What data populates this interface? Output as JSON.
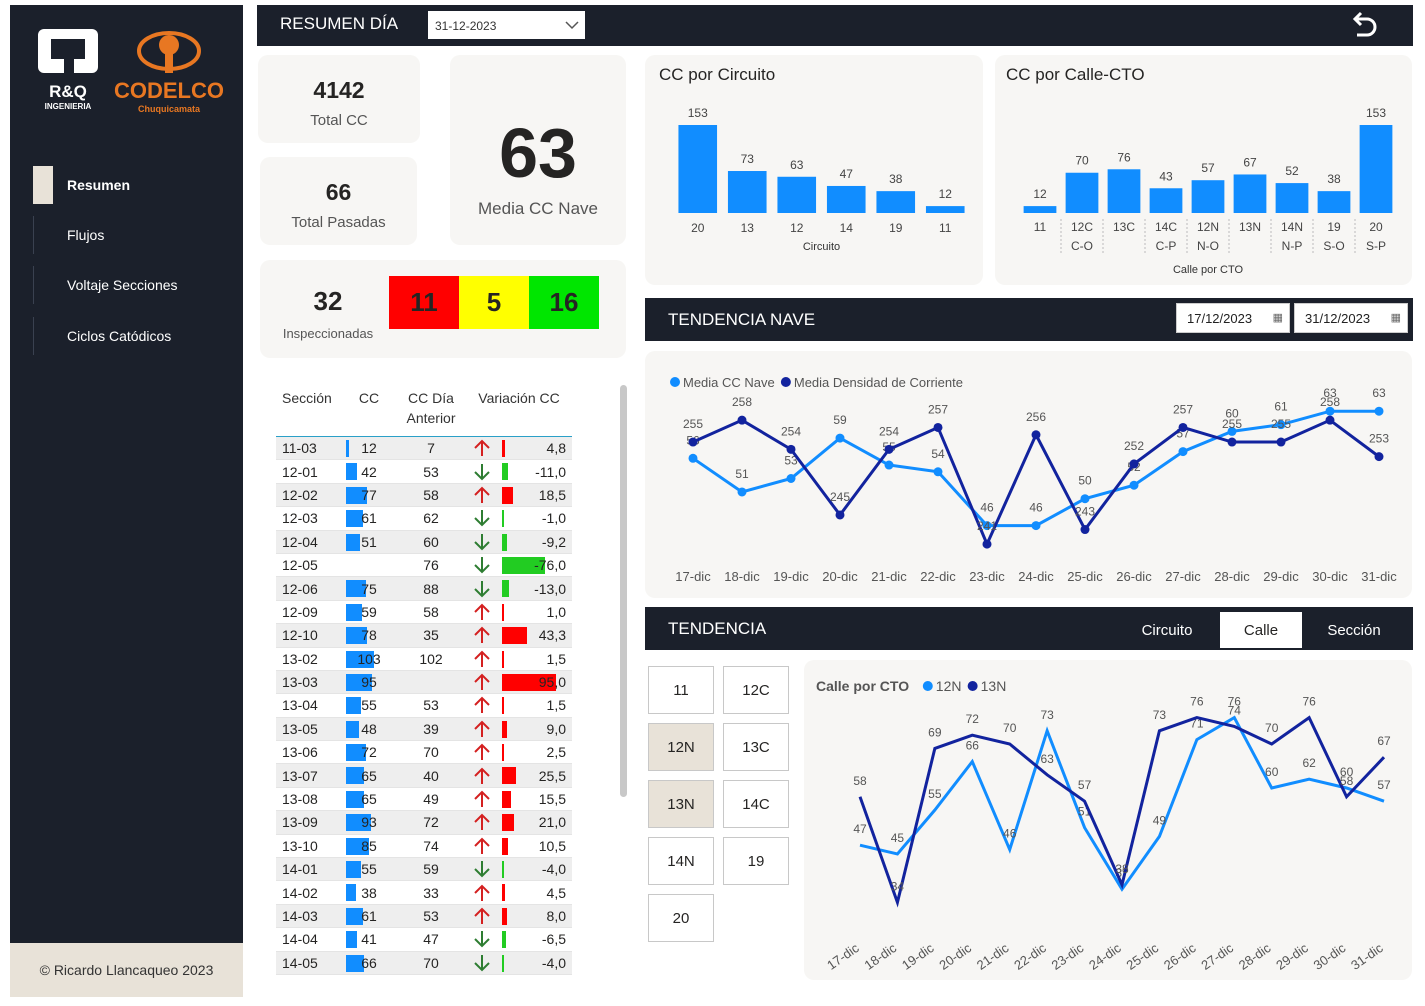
{
  "sidebar": {
    "logo_rq": "R&Q",
    "logo_rq_sub": "INGENIERIA",
    "logo_codelco": "CODELCO",
    "logo_codelco_sub": "Chuquicamata",
    "items": [
      {
        "label": "Resumen",
        "active": true
      },
      {
        "label": "Flujos"
      },
      {
        "label": "Voltaje Secciones"
      },
      {
        "label": "Ciclos Catódicos"
      }
    ],
    "footer": "© Ricardo Llancaqueo 2023"
  },
  "header": {
    "title": "RESUMEN DÍA",
    "date": "31-12-2023",
    "back_icon": "undo-arrow-icon"
  },
  "kpis": {
    "total_cc": {
      "value": "4142",
      "label": "Total CC"
    },
    "total_pasadas": {
      "value": "66",
      "label": "Total Pasadas"
    },
    "media_cc_nave": {
      "value": "63",
      "label": "Media CC Nave"
    },
    "inspeccionadas": {
      "value": "32",
      "label": "Inspeccionadas"
    },
    "status": [
      {
        "value": "11",
        "color": "#ff0000"
      },
      {
        "value": "5",
        "color": "#ffff00"
      },
      {
        "value": "16",
        "color": "#00e600"
      }
    ]
  },
  "table": {
    "headers": [
      "Sección",
      "CC",
      "CC Día Anterior",
      "Variación CC"
    ],
    "rows": [
      {
        "sec": "11-03",
        "cc": "12",
        "prev": "7",
        "dir": "up",
        "var": "4,8"
      },
      {
        "sec": "12-01",
        "cc": "42",
        "prev": "53",
        "dir": "down",
        "var": "-11,0"
      },
      {
        "sec": "12-02",
        "cc": "77",
        "prev": "58",
        "dir": "up",
        "var": "18,5"
      },
      {
        "sec": "12-03",
        "cc": "61",
        "prev": "62",
        "dir": "down",
        "var": "-1,0"
      },
      {
        "sec": "12-04",
        "cc": "51",
        "prev": "60",
        "dir": "down",
        "var": "-9,2"
      },
      {
        "sec": "12-05",
        "cc": "",
        "prev": "76",
        "dir": "down",
        "var": "-76,0"
      },
      {
        "sec": "12-06",
        "cc": "75",
        "prev": "88",
        "dir": "down",
        "var": "-13,0"
      },
      {
        "sec": "12-09",
        "cc": "59",
        "prev": "58",
        "dir": "up",
        "var": "1,0"
      },
      {
        "sec": "12-10",
        "cc": "78",
        "prev": "35",
        "dir": "up",
        "var": "43,3"
      },
      {
        "sec": "13-02",
        "cc": "103",
        "prev": "102",
        "dir": "up",
        "var": "1,5"
      },
      {
        "sec": "13-03",
        "cc": "95",
        "prev": "",
        "dir": "up",
        "var": "95,0"
      },
      {
        "sec": "13-04",
        "cc": "55",
        "prev": "53",
        "dir": "up",
        "var": "1,5"
      },
      {
        "sec": "13-05",
        "cc": "48",
        "prev": "39",
        "dir": "up",
        "var": "9,0"
      },
      {
        "sec": "13-06",
        "cc": "72",
        "prev": "70",
        "dir": "up",
        "var": "2,5"
      },
      {
        "sec": "13-07",
        "cc": "65",
        "prev": "40",
        "dir": "up",
        "var": "25,5"
      },
      {
        "sec": "13-08",
        "cc": "65",
        "prev": "49",
        "dir": "up",
        "var": "15,5"
      },
      {
        "sec": "13-09",
        "cc": "93",
        "prev": "72",
        "dir": "up",
        "var": "21,0"
      },
      {
        "sec": "13-10",
        "cc": "85",
        "prev": "74",
        "dir": "up",
        "var": "10,5"
      },
      {
        "sec": "14-01",
        "cc": "55",
        "prev": "59",
        "dir": "down",
        "var": "-4,0"
      },
      {
        "sec": "14-02",
        "cc": "38",
        "prev": "33",
        "dir": "up",
        "var": "4,5"
      },
      {
        "sec": "14-03",
        "cc": "61",
        "prev": "53",
        "dir": "up",
        "var": "8,0"
      },
      {
        "sec": "14-04",
        "cc": "41",
        "prev": "47",
        "dir": "down",
        "var": "-6,5"
      },
      {
        "sec": "14-05",
        "cc": "66",
        "prev": "70",
        "dir": "down",
        "var": "-4,0"
      }
    ]
  },
  "tendencia_nave": {
    "title": "TENDENCIA NAVE",
    "date_from": "17/12/2023",
    "date_to": "31/12/2023"
  },
  "tendencia": {
    "title": "TENDENCIA",
    "segments": [
      "Circuito",
      "Calle",
      "Sección"
    ],
    "selected": "Calle",
    "tiles": [
      "11",
      "12C",
      "12N",
      "13C",
      "13N",
      "14C",
      "14N",
      "19",
      "20"
    ],
    "selected_tiles": [
      "12N",
      "13N"
    ]
  },
  "chart_data": [
    {
      "type": "bar",
      "title": "CC por Circuito",
      "xlabel": "Circuito",
      "categories": [
        "20",
        "13",
        "12",
        "14",
        "19",
        "11"
      ],
      "values": [
        153,
        73,
        63,
        47,
        38,
        12
      ],
      "color": "#118dff"
    },
    {
      "type": "bar",
      "title": "CC por Calle-CTO",
      "xlabel": "Calle por CTO",
      "categories": [
        "11",
        "12C",
        "13C",
        "14C",
        "12N",
        "13N",
        "14N",
        "19",
        "20"
      ],
      "group_labels": [
        "",
        "C-O",
        "",
        "C-P",
        "N-O",
        "",
        "N-P",
        "S-O",
        "S-P"
      ],
      "values": [
        12,
        70,
        76,
        43,
        57,
        67,
        52,
        38,
        153
      ],
      "color": "#118dff"
    },
    {
      "type": "line",
      "legend": "top-left",
      "categories": [
        "17-dic",
        "18-dic",
        "19-dic",
        "20-dic",
        "21-dic",
        "22-dic",
        "23-dic",
        "24-dic",
        "25-dic",
        "26-dic",
        "27-dic",
        "28-dic",
        "29-dic",
        "30-dic",
        "31-dic"
      ],
      "series": [
        {
          "name": "Media CC Nave",
          "color": "#118dff",
          "values": [
            56,
            51,
            53,
            59,
            55,
            54,
            46,
            46,
            50,
            52,
            57,
            60,
            61,
            63,
            63
          ]
        },
        {
          "name": "Media Densidad de Corriente",
          "color": "#12239e",
          "values": [
            255,
            258,
            254,
            245,
            254,
            257,
            241,
            256,
            243,
            252,
            257,
            255,
            255,
            258,
            253
          ]
        }
      ]
    },
    {
      "type": "line",
      "title": "Calle por CTO",
      "legend": "top-left",
      "categories": [
        "17-dic",
        "18-dic",
        "19-dic",
        "20-dic",
        "21-dic",
        "22-dic",
        "23-dic",
        "24-dic",
        "25-dic",
        "26-dic",
        "27-dic",
        "28-dic",
        "29-dic",
        "30-dic",
        "31-dic"
      ],
      "series": [
        {
          "name": "12N",
          "color": "#118dff",
          "values": [
            47,
            45,
            55,
            66,
            46,
            73,
            51,
            37,
            49,
            71,
            76,
            60,
            62,
            60,
            57
          ]
        },
        {
          "name": "13N",
          "color": "#12239e",
          "values": [
            58,
            34,
            69,
            72,
            70,
            63,
            57,
            38,
            73,
            76,
            74,
            70,
            76,
            58,
            67
          ]
        }
      ]
    }
  ]
}
